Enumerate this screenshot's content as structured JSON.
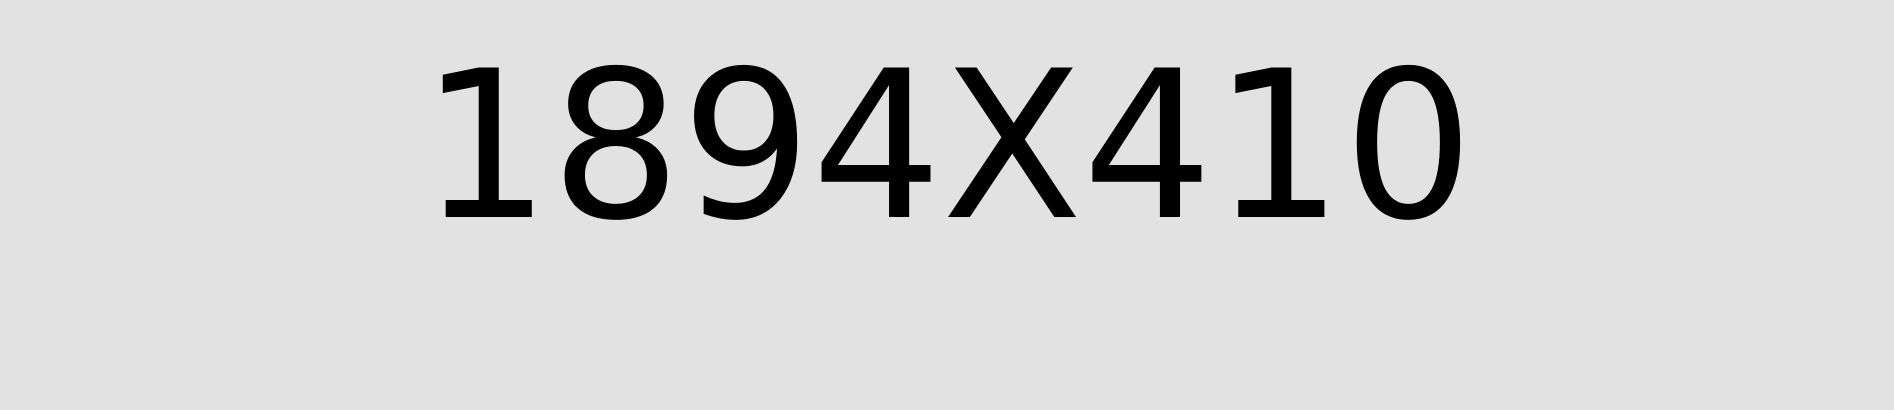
{
  "placeholder": {
    "label": "1894X410",
    "background_color": "#e2e2e2",
    "text_color": "#000000"
  }
}
